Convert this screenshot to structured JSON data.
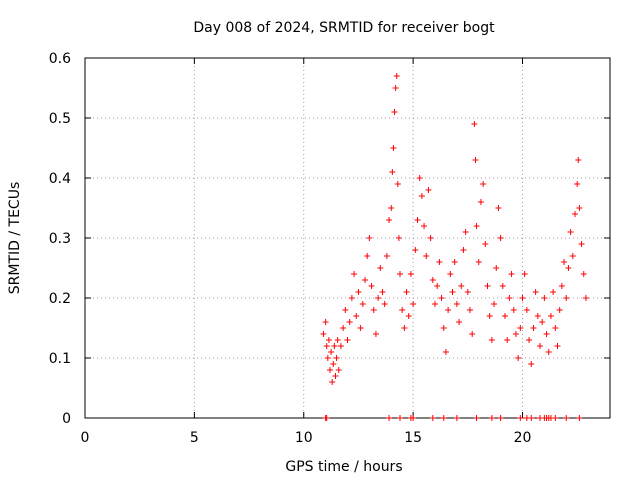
{
  "chart_data": {
    "type": "scatter",
    "title": "Day 008 of 2024, SRMTID for receiver bogt",
    "xlabel": "GPS time / hours",
    "ylabel": "SRMTID / TECUs",
    "xlim": [
      0,
      24
    ],
    "ylim": [
      0,
      0.6
    ],
    "xticks": [
      0,
      5,
      10,
      15,
      20
    ],
    "yticks": [
      0,
      0.1,
      0.2,
      0.3,
      0.4,
      0.5,
      0.6
    ],
    "grid": true,
    "marker": "+",
    "color": "#ff0000",
    "series": [
      {
        "name": "SRMTID",
        "points": [
          [
            10.9,
            0.14
          ],
          [
            11.0,
            0.16
          ],
          [
            11.05,
            0.12
          ],
          [
            11.1,
            0.1
          ],
          [
            11.15,
            0.13
          ],
          [
            11.2,
            0.08
          ],
          [
            11.25,
            0.11
          ],
          [
            11.3,
            0.06
          ],
          [
            11.35,
            0.09
          ],
          [
            11.4,
            0.12
          ],
          [
            11.45,
            0.07
          ],
          [
            11.5,
            0.1
          ],
          [
            11.55,
            0.13
          ],
          [
            11.6,
            0.08
          ],
          [
            11.7,
            0.12
          ],
          [
            11.8,
            0.15
          ],
          [
            11.9,
            0.18
          ],
          [
            12.0,
            0.13
          ],
          [
            12.1,
            0.16
          ],
          [
            12.2,
            0.2
          ],
          [
            12.3,
            0.24
          ],
          [
            12.4,
            0.17
          ],
          [
            12.5,
            0.21
          ],
          [
            12.6,
            0.15
          ],
          [
            12.7,
            0.19
          ],
          [
            12.8,
            0.23
          ],
          [
            12.9,
            0.27
          ],
          [
            13.0,
            0.3
          ],
          [
            13.1,
            0.22
          ],
          [
            13.2,
            0.18
          ],
          [
            13.3,
            0.14
          ],
          [
            13.4,
            0.2
          ],
          [
            13.5,
            0.25
          ],
          [
            13.6,
            0.21
          ],
          [
            13.7,
            0.19
          ],
          [
            13.8,
            0.27
          ],
          [
            13.9,
            0.33
          ],
          [
            14.0,
            0.35
          ],
          [
            14.05,
            0.41
          ],
          [
            14.1,
            0.45
          ],
          [
            14.15,
            0.51
          ],
          [
            14.2,
            0.55
          ],
          [
            14.25,
            0.57
          ],
          [
            14.3,
            0.39
          ],
          [
            14.35,
            0.3
          ],
          [
            14.4,
            0.24
          ],
          [
            14.5,
            0.18
          ],
          [
            14.6,
            0.15
          ],
          [
            14.7,
            0.21
          ],
          [
            14.8,
            0.17
          ],
          [
            14.9,
            0.24
          ],
          [
            15.0,
            0.19
          ],
          [
            15.1,
            0.28
          ],
          [
            15.2,
            0.33
          ],
          [
            15.3,
            0.4
          ],
          [
            15.4,
            0.37
          ],
          [
            15.5,
            0.32
          ],
          [
            15.6,
            0.27
          ],
          [
            15.7,
            0.38
          ],
          [
            15.8,
            0.3
          ],
          [
            15.9,
            0.23
          ],
          [
            16.0,
            0.19
          ],
          [
            16.1,
            0.22
          ],
          [
            16.2,
            0.26
          ],
          [
            16.3,
            0.2
          ],
          [
            16.4,
            0.15
          ],
          [
            16.5,
            0.11
          ],
          [
            16.6,
            0.18
          ],
          [
            16.7,
            0.24
          ],
          [
            16.8,
            0.21
          ],
          [
            16.9,
            0.26
          ],
          [
            17.0,
            0.19
          ],
          [
            17.1,
            0.16
          ],
          [
            17.2,
            0.22
          ],
          [
            17.3,
            0.28
          ],
          [
            17.4,
            0.31
          ],
          [
            17.5,
            0.21
          ],
          [
            17.6,
            0.18
          ],
          [
            17.7,
            0.14
          ],
          [
            17.8,
            0.49
          ],
          [
            17.85,
            0.43
          ],
          [
            17.9,
            0.32
          ],
          [
            18.0,
            0.26
          ],
          [
            18.1,
            0.36
          ],
          [
            18.2,
            0.39
          ],
          [
            18.3,
            0.29
          ],
          [
            18.4,
            0.22
          ],
          [
            18.5,
            0.17
          ],
          [
            18.6,
            0.13
          ],
          [
            18.7,
            0.19
          ],
          [
            18.8,
            0.25
          ],
          [
            18.9,
            0.35
          ],
          [
            19.0,
            0.3
          ],
          [
            19.1,
            0.22
          ],
          [
            19.2,
            0.17
          ],
          [
            19.3,
            0.13
          ],
          [
            19.4,
            0.2
          ],
          [
            19.5,
            0.24
          ],
          [
            19.6,
            0.18
          ],
          [
            19.7,
            0.14
          ],
          [
            19.8,
            0.1
          ],
          [
            19.9,
            0.15
          ],
          [
            20.0,
            0.2
          ],
          [
            20.1,
            0.24
          ],
          [
            20.2,
            0.18
          ],
          [
            20.3,
            0.13
          ],
          [
            20.4,
            0.09
          ],
          [
            20.5,
            0.15
          ],
          [
            20.6,
            0.21
          ],
          [
            20.7,
            0.17
          ],
          [
            20.8,
            0.12
          ],
          [
            20.9,
            0.16
          ],
          [
            21.0,
            0.2
          ],
          [
            21.1,
            0.14
          ],
          [
            21.2,
            0.11
          ],
          [
            21.3,
            0.17
          ],
          [
            21.4,
            0.21
          ],
          [
            21.5,
            0.15
          ],
          [
            21.6,
            0.12
          ],
          [
            21.7,
            0.18
          ],
          [
            21.8,
            0.22
          ],
          [
            21.9,
            0.26
          ],
          [
            22.0,
            0.2
          ],
          [
            22.1,
            0.25
          ],
          [
            22.2,
            0.31
          ],
          [
            22.3,
            0.27
          ],
          [
            22.4,
            0.34
          ],
          [
            22.5,
            0.39
          ],
          [
            22.55,
            0.43
          ],
          [
            22.6,
            0.35
          ],
          [
            22.7,
            0.29
          ],
          [
            22.8,
            0.24
          ],
          [
            22.9,
            0.2
          ]
        ]
      }
    ],
    "zero_values_x": [
      11.0,
      11.05,
      13.9,
      14.4,
      14.9,
      15.0,
      15.9,
      16.4,
      17.0,
      17.9,
      18.6,
      19.0,
      19.9,
      20.2,
      20.4,
      20.8,
      21.0,
      21.1,
      21.2,
      21.3,
      21.5,
      22.0,
      22.6
    ]
  }
}
